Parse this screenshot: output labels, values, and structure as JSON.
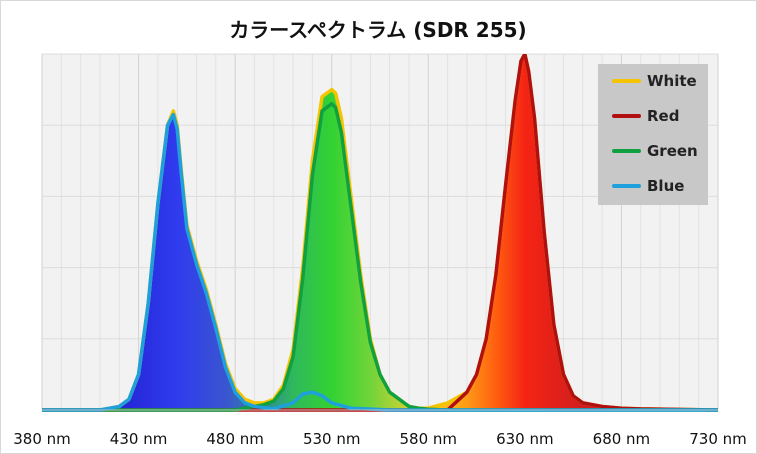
{
  "chart_data": {
    "type": "line",
    "title": "カラースペクトラム (SDR 255)",
    "xlabel": "",
    "ylabel": "",
    "x_unit": "nm",
    "xlim": [
      380,
      730
    ],
    "ylim": [
      0,
      1
    ],
    "x_ticks": [
      "380 nm",
      "430 nm",
      "480 nm",
      "530 nm",
      "580 nm",
      "630 nm",
      "680 nm",
      "730 nm"
    ],
    "grid": true,
    "legend_position": "top-right",
    "series": [
      {
        "name": "White",
        "color": "#f5c400",
        "x": [
          380,
          410,
          420,
          425,
          430,
          435,
          440,
          445,
          448,
          450,
          452,
          455,
          460,
          465,
          470,
          475,
          480,
          485,
          490,
          495,
          500,
          505,
          510,
          515,
          520,
          525,
          530,
          532,
          535,
          540,
          545,
          550,
          555,
          560,
          565,
          570,
          575,
          580,
          590,
          600,
          605,
          610,
          615,
          620,
          625,
          628,
          630,
          632,
          635,
          640,
          645,
          650,
          655,
          660,
          670,
          680,
          690,
          730
        ],
        "y": [
          0,
          0,
          0.01,
          0.03,
          0.1,
          0.3,
          0.58,
          0.8,
          0.84,
          0.8,
          0.68,
          0.52,
          0.42,
          0.34,
          0.24,
          0.13,
          0.06,
          0.03,
          0.02,
          0.02,
          0.03,
          0.07,
          0.17,
          0.4,
          0.7,
          0.88,
          0.9,
          0.89,
          0.82,
          0.6,
          0.38,
          0.2,
          0.1,
          0.05,
          0.03,
          0.01,
          0.005,
          0.005,
          0.02,
          0.05,
          0.1,
          0.2,
          0.38,
          0.63,
          0.87,
          0.98,
          1.0,
          0.95,
          0.82,
          0.5,
          0.24,
          0.1,
          0.04,
          0.02,
          0.01,
          0.005,
          0.003,
          0
        ]
      },
      {
        "name": "Red",
        "color": "#b01010",
        "x": [
          380,
          590,
          600,
          605,
          610,
          615,
          620,
          625,
          628,
          630,
          632,
          635,
          640,
          645,
          650,
          655,
          660,
          670,
          680,
          690,
          730
        ],
        "y": [
          0,
          0,
          0.05,
          0.1,
          0.2,
          0.38,
          0.63,
          0.87,
          0.98,
          1.0,
          0.95,
          0.82,
          0.5,
          0.24,
          0.1,
          0.04,
          0.02,
          0.01,
          0.005,
          0.003,
          0
        ]
      },
      {
        "name": "Green",
        "color": "#10a040",
        "x": [
          380,
          480,
          490,
          495,
          500,
          505,
          510,
          515,
          520,
          525,
          530,
          532,
          535,
          540,
          545,
          550,
          555,
          560,
          565,
          570,
          575,
          580,
          590,
          730
        ],
        "y": [
          0,
          0,
          0.01,
          0.015,
          0.025,
          0.06,
          0.15,
          0.37,
          0.66,
          0.84,
          0.86,
          0.85,
          0.78,
          0.57,
          0.36,
          0.19,
          0.1,
          0.05,
          0.03,
          0.01,
          0.005,
          0.002,
          0,
          0
        ]
      },
      {
        "name": "Blue",
        "color": "#1ea0dc",
        "x": [
          380,
          410,
          420,
          425,
          430,
          435,
          440,
          445,
          448,
          450,
          452,
          455,
          460,
          465,
          470,
          475,
          480,
          485,
          490,
          500,
          510,
          515,
          520,
          525,
          530,
          540,
          560,
          730
        ],
        "y": [
          0,
          0,
          0.01,
          0.03,
          0.1,
          0.3,
          0.58,
          0.8,
          0.83,
          0.79,
          0.67,
          0.51,
          0.41,
          0.33,
          0.23,
          0.12,
          0.05,
          0.02,
          0.01,
          0.003,
          0.02,
          0.045,
          0.05,
          0.04,
          0.02,
          0.005,
          0,
          0
        ]
      }
    ]
  }
}
